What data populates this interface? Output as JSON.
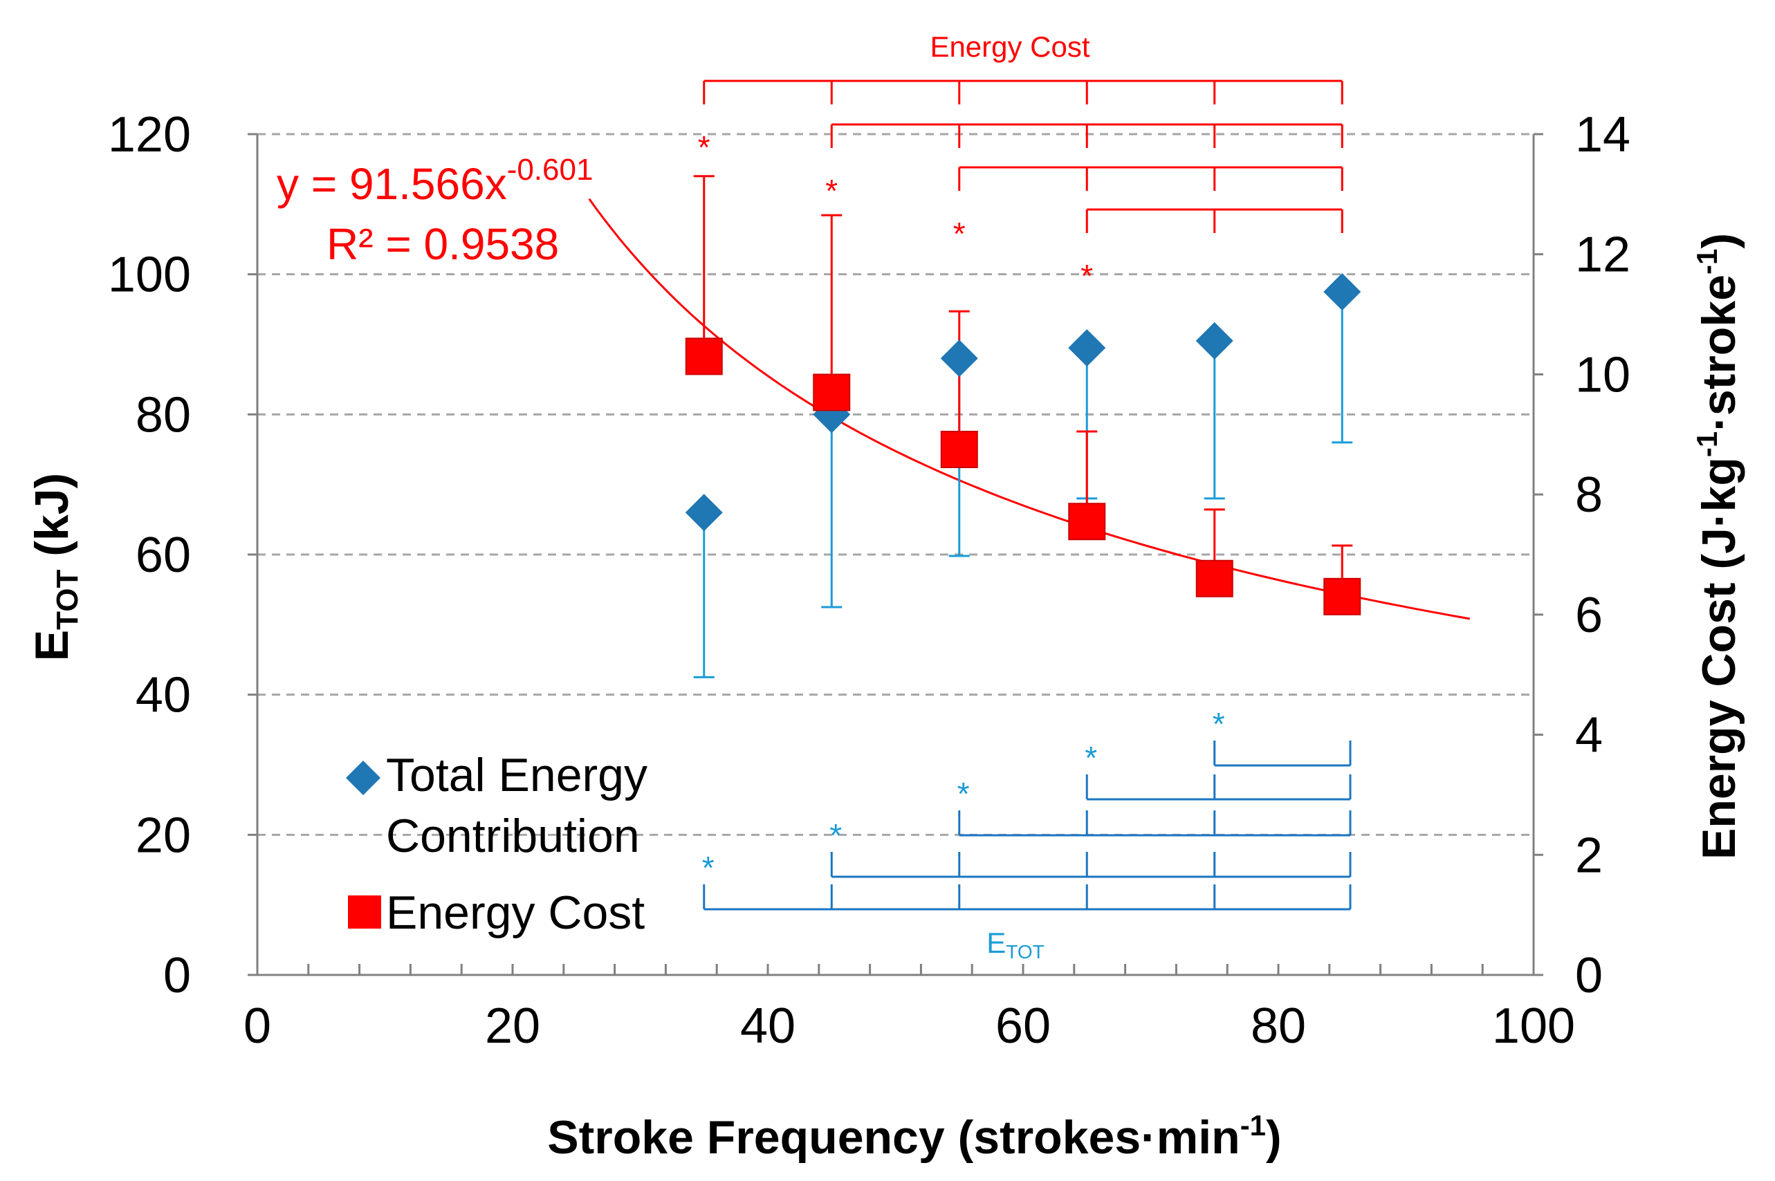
{
  "chart_data": {
    "type": "scatter",
    "xlabel": {
      "main": "Stroke Frequency (strokes·min",
      "sup": "-1",
      "end": ")"
    },
    "ylabel_left": {
      "main": "E",
      "sub": "TOT",
      "end": " (kJ)"
    },
    "ylabel_right": {
      "main": "Energy Cost (J·kg",
      "sup1": "-1",
      "mid": "·stroke",
      "sup2": "-1",
      "end": ")"
    },
    "xlim": [
      0,
      100
    ],
    "ylim_left": [
      0,
      120
    ],
    "ylim_right": [
      0,
      14
    ],
    "x_ticks": [
      "0",
      "20",
      "40",
      "60",
      "80",
      "100"
    ],
    "y_left_ticks": [
      "0",
      "20",
      "40",
      "60",
      "80",
      "100",
      "120"
    ],
    "y_right_ticks": [
      "0",
      "2",
      "4",
      "6",
      "8",
      "10",
      "12",
      "14"
    ],
    "gridlines": "horizontal dashed",
    "series": [
      {
        "name": "Total Energy Contribution",
        "name_lines": [
          "Total Energy",
          "Contribution"
        ],
        "axis": "left",
        "marker": "diamond",
        "color": "#1f77b4",
        "errorbar_color": "#1a9bd7",
        "x": [
          35,
          45,
          55,
          65,
          75,
          85
        ],
        "y": [
          66,
          80,
          88,
          89.5,
          90.5,
          97.5
        ],
        "err_lower": [
          23.5,
          27.5,
          28.2,
          21.5,
          22.5,
          21.5
        ]
      },
      {
        "name": "Energy Cost",
        "axis": "right",
        "marker": "square",
        "color": "#ff0000",
        "x": [
          35,
          45,
          55,
          65,
          75,
          85
        ],
        "y": [
          10.3,
          9.7,
          8.75,
          7.55,
          6.6,
          6.3
        ],
        "err_upper": [
          3.0,
          2.95,
          2.3,
          1.5,
          1.15,
          0.85
        ]
      }
    ],
    "trendline": {
      "series": "Energy Cost",
      "axis": "right",
      "coef": 91.566,
      "exponent": -0.601,
      "x_range": [
        26,
        95
      ],
      "equation_text": "y = 91.566x",
      "exponent_text": "-0.601",
      "r2_text": "R² = 0.9538"
    },
    "annotations": {
      "red_label": "Energy Cost",
      "blue_label": "E",
      "blue_label_sub": "TOT",
      "star": "*"
    }
  },
  "colors": {
    "red": "#ff0000",
    "blue_marker": "#1f77b4",
    "blue_bracket": "#1a76c2",
    "blue_star": "#1a9bd7",
    "grid": "#a6a6a6",
    "axis": "#808080"
  }
}
